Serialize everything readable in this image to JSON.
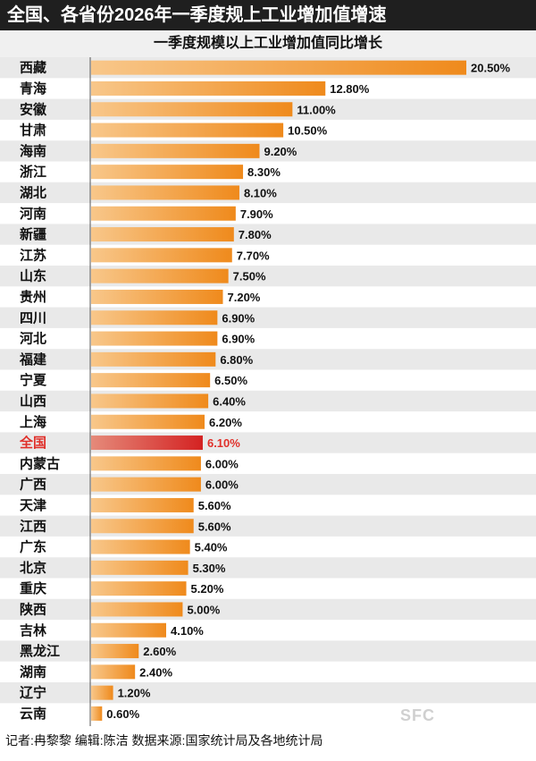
{
  "header": {
    "title": "全国、各省份2026年一季度规上工业增加值增速",
    "subtitle": "一季度规模以上工业增加值同比增长"
  },
  "footer": {
    "text": "记者:冉黎黎   编辑:陈洁   数据来源:国家统计局及各地统计局"
  },
  "watermark": {
    "text": "SFC"
  },
  "colors": {
    "bar_start": "#f8c78a",
    "bar_end": "#ef8a1c",
    "highlight_start": "#e58a7a",
    "highlight_end": "#d42222",
    "highlight_text": "#e0302a",
    "stripe": "#e9e9e9"
  },
  "chart_data": {
    "type": "bar",
    "orientation": "horizontal",
    "highlight": "全国",
    "value_suffix": "%",
    "xlim": [
      0,
      20.5
    ],
    "grid": false,
    "categories": [
      "西藏",
      "青海",
      "安徽",
      "甘肃",
      "海南",
      "浙江",
      "湖北",
      "河南",
      "新疆",
      "江苏",
      "山东",
      "贵州",
      "四川",
      "河北",
      "福建",
      "宁夏",
      "山西",
      "上海",
      "全国",
      "内蒙古",
      "广西",
      "天津",
      "江西",
      "广东",
      "北京",
      "重庆",
      "陕西",
      "吉林",
      "黑龙江",
      "湖南",
      "辽宁",
      "云南"
    ],
    "values": [
      20.5,
      12.8,
      11.0,
      10.5,
      9.2,
      8.3,
      8.1,
      7.9,
      7.8,
      7.7,
      7.5,
      7.2,
      6.9,
      6.9,
      6.8,
      6.5,
      6.4,
      6.2,
      6.1,
      6.0,
      6.0,
      5.6,
      5.6,
      5.4,
      5.3,
      5.2,
      5.0,
      4.1,
      2.6,
      2.4,
      1.2,
      0.6
    ],
    "value_labels": [
      "20.50%",
      "12.80%",
      "11.00%",
      "10.50%",
      "9.20%",
      "8.30%",
      "8.10%",
      "7.90%",
      "7.80%",
      "7.70%",
      "7.50%",
      "7.20%",
      "6.90%",
      "6.90%",
      "6.80%",
      "6.50%",
      "6.40%",
      "6.20%",
      "6.10%",
      "6.00%",
      "6.00%",
      "5.60%",
      "5.60%",
      "5.40%",
      "5.30%",
      "5.20%",
      "5.00%",
      "4.10%",
      "2.60%",
      "2.40%",
      "1.20%",
      "0.60%"
    ]
  }
}
